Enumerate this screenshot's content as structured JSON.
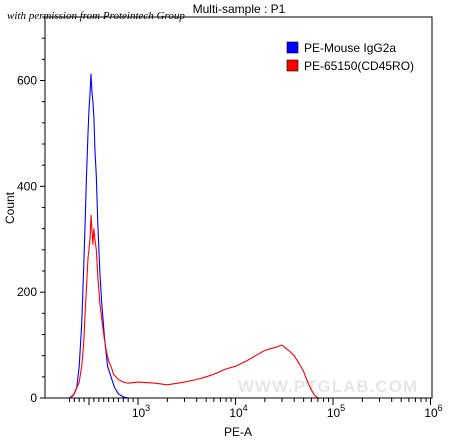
{
  "watermark_top": "with permission from Proteintech Group",
  "watermark_bg": "WWW.PTGLAB.COM",
  "chart_data": {
    "type": "line",
    "title": "Multi-sample : P1",
    "xlabel": "PE-A",
    "ylabel": "Count",
    "xscale": "biexponential",
    "ylim": [
      0,
      720
    ],
    "y_ticks": [
      0,
      200,
      400,
      600
    ],
    "x_tick_labels": [
      {
        "base": "10",
        "exp": "3",
        "value": 1000
      },
      {
        "base": "10",
        "exp": "4",
        "value": 10000
      },
      {
        "base": "10",
        "exp": "5",
        "value": 100000
      },
      {
        "base": "10",
        "exp": "6",
        "value": 1000000
      }
    ],
    "legend": {
      "placement": "top-right",
      "entries": [
        {
          "label": "PE-Mouse IgG2a",
          "color": "#0000ff"
        },
        {
          "label": "PE-65150(CD45RO)",
          "color": "#ff0000"
        }
      ]
    },
    "series": [
      {
        "name": "PE-Mouse IgG2a",
        "color": "#0000ff",
        "points": [
          [
            -400,
            0
          ],
          [
            -320,
            5
          ],
          [
            -250,
            20
          ],
          [
            -200,
            60
          ],
          [
            -150,
            140
          ],
          [
            -110,
            240
          ],
          [
            -80,
            330
          ],
          [
            -50,
            420
          ],
          [
            -20,
            500
          ],
          [
            0,
            545
          ],
          [
            20,
            575
          ],
          [
            40,
            612
          ],
          [
            60,
            580
          ],
          [
            80,
            560
          ],
          [
            100,
            530
          ],
          [
            120,
            470
          ],
          [
            150,
            420
          ],
          [
            180,
            330
          ],
          [
            220,
            240
          ],
          [
            260,
            180
          ],
          [
            320,
            110
          ],
          [
            380,
            60
          ],
          [
            450,
            40
          ],
          [
            520,
            20
          ],
          [
            600,
            8
          ],
          [
            700,
            2
          ],
          [
            800,
            0
          ]
        ]
      },
      {
        "name": "PE-65150(CD45RO)",
        "color": "#ff0000",
        "points": [
          [
            -400,
            0
          ],
          [
            -300,
            8
          ],
          [
            -200,
            30
          ],
          [
            -150,
            60
          ],
          [
            -110,
            100
          ],
          [
            -80,
            160
          ],
          [
            -50,
            210
          ],
          [
            -20,
            265
          ],
          [
            0,
            280
          ],
          [
            20,
            300
          ],
          [
            40,
            345
          ],
          [
            60,
            320
          ],
          [
            80,
            290
          ],
          [
            100,
            320
          ],
          [
            120,
            300
          ],
          [
            150,
            280
          ],
          [
            180,
            230
          ],
          [
            220,
            180
          ],
          [
            260,
            150
          ],
          [
            300,
            120
          ],
          [
            350,
            90
          ],
          [
            400,
            70
          ],
          [
            450,
            60
          ],
          [
            500,
            45
          ],
          [
            600,
            35
          ],
          [
            700,
            30
          ],
          [
            800,
            28
          ],
          [
            1000,
            30
          ],
          [
            1500,
            28
          ],
          [
            2000,
            25
          ],
          [
            3000,
            30
          ],
          [
            4000,
            35
          ],
          [
            5000,
            40
          ],
          [
            6000,
            45
          ],
          [
            8000,
            55
          ],
          [
            10000,
            60
          ],
          [
            13000,
            70
          ],
          [
            16000,
            80
          ],
          [
            20000,
            90
          ],
          [
            25000,
            95
          ],
          [
            30000,
            100
          ],
          [
            35000,
            90
          ],
          [
            40000,
            80
          ],
          [
            45000,
            65
          ],
          [
            50000,
            50
          ],
          [
            55000,
            30
          ],
          [
            60000,
            15
          ],
          [
            65000,
            5
          ],
          [
            70000,
            0
          ]
        ]
      }
    ]
  }
}
